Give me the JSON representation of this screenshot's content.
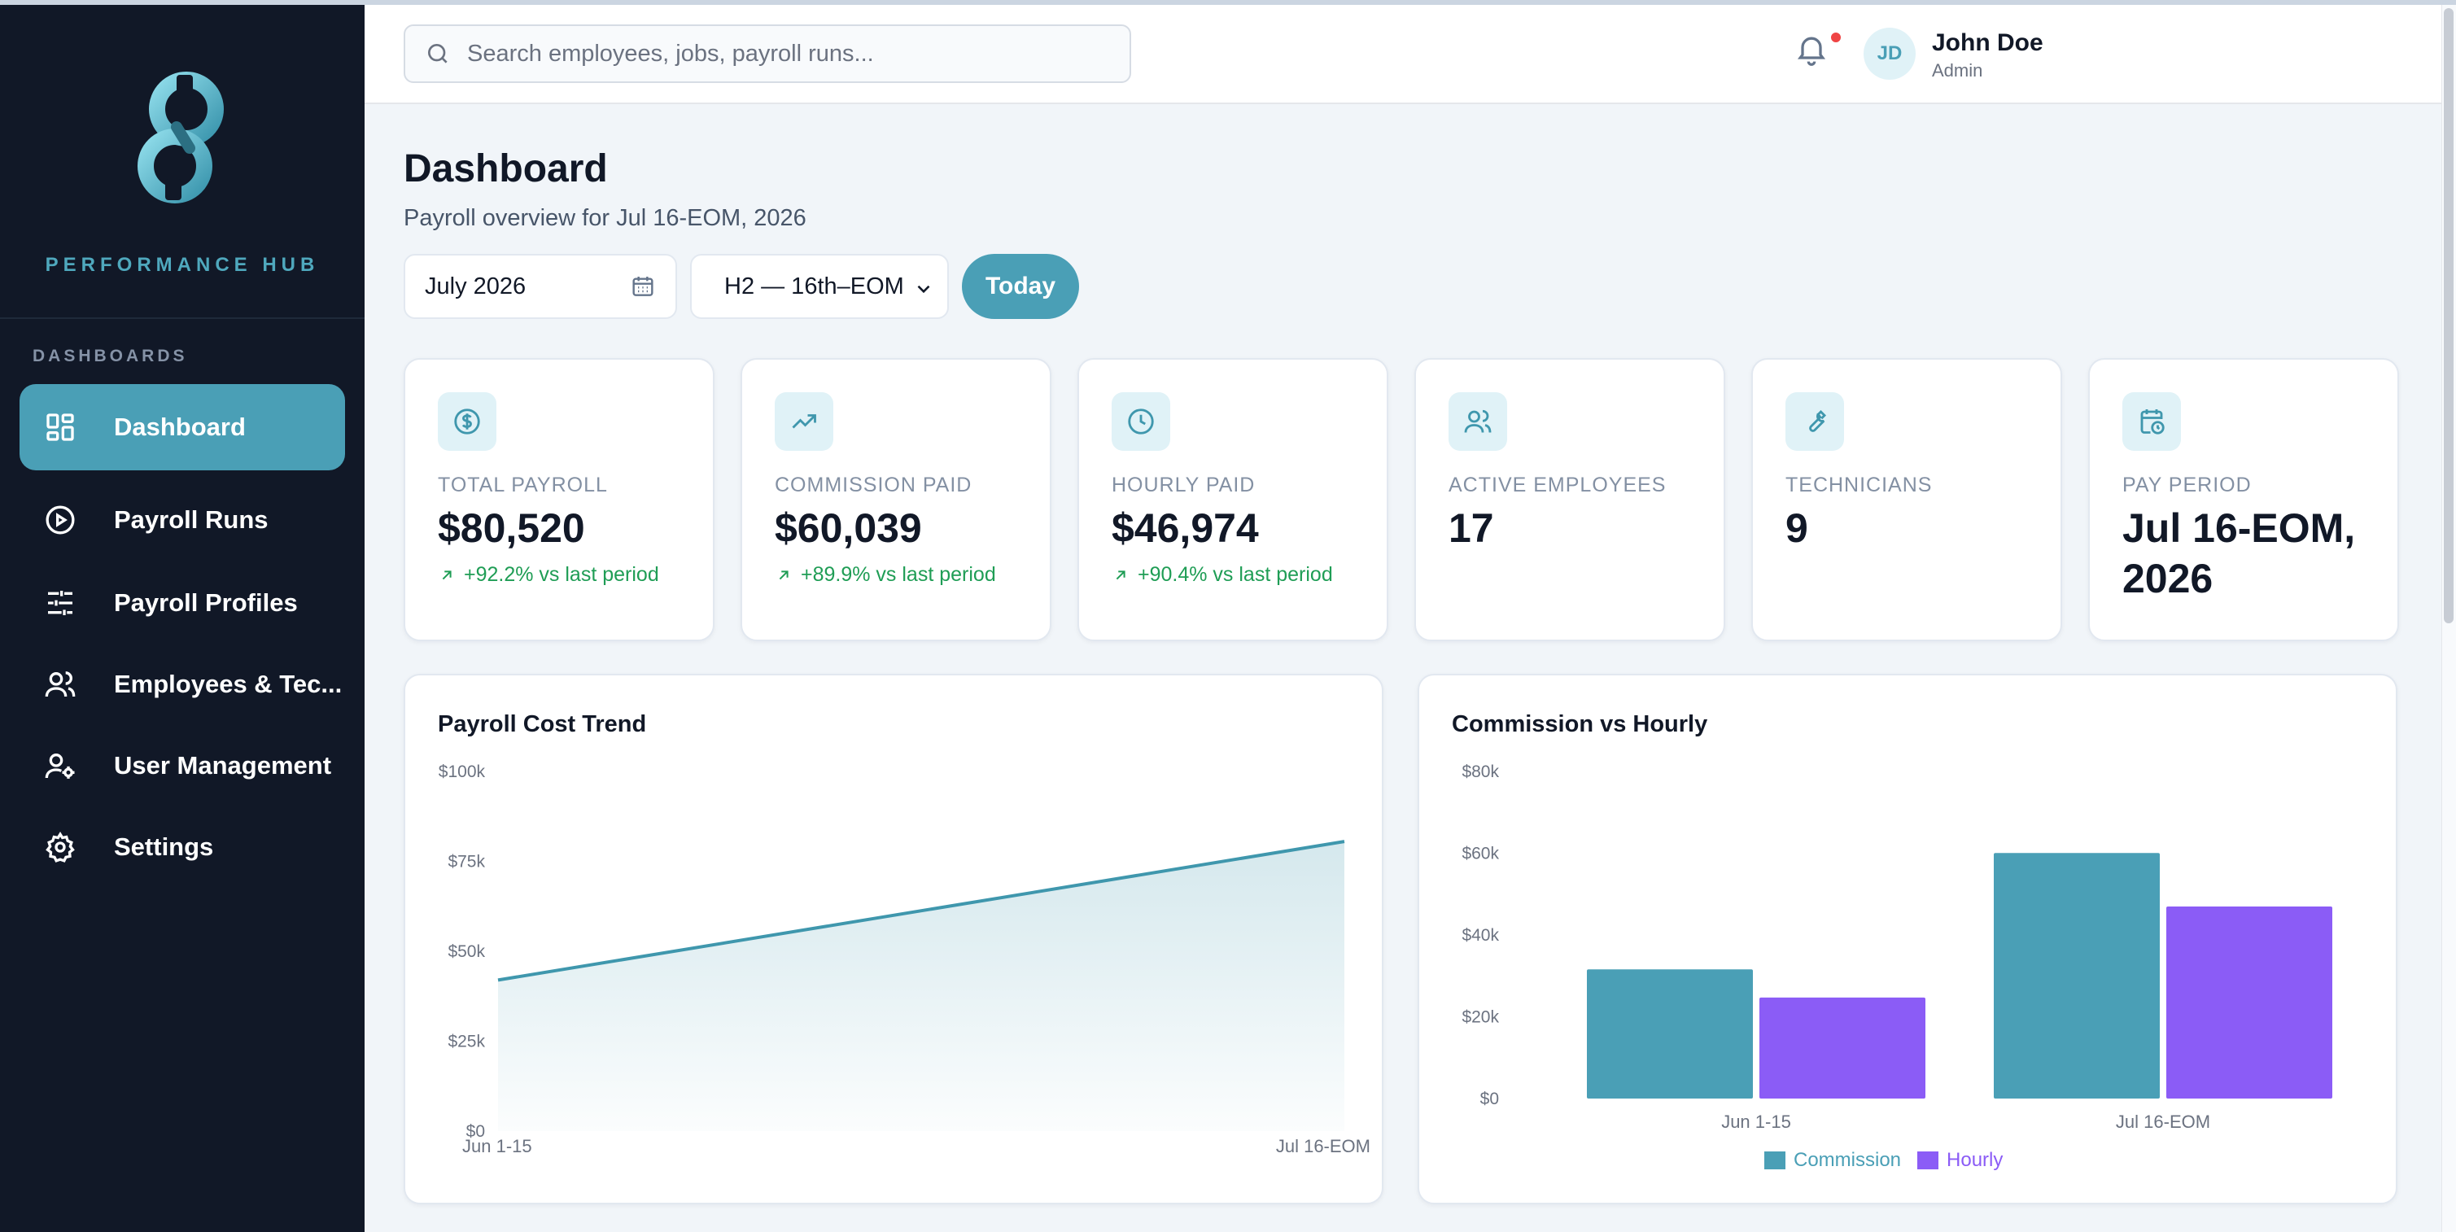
{
  "app": {
    "brand": "PERFORMANCE HUB",
    "accent_color": "#4a9fb6"
  },
  "sidebar": {
    "section": "DASHBOARDS",
    "items": [
      {
        "label": "Dashboard",
        "icon": "grid-icon",
        "active": true
      },
      {
        "label": "Payroll Runs",
        "icon": "play-circle-icon",
        "active": false
      },
      {
        "label": "Payroll Profiles",
        "icon": "sliders-icon",
        "active": false
      },
      {
        "label": "Employees & Tec...",
        "icon": "users-icon",
        "active": false
      },
      {
        "label": "User Management",
        "icon": "user-cog-icon",
        "active": false
      },
      {
        "label": "Settings",
        "icon": "gear-icon",
        "active": false
      }
    ]
  },
  "topbar": {
    "search_placeholder": "Search employees, jobs, payroll runs...",
    "user": {
      "initials": "JD",
      "name": "John Doe",
      "role": "Admin"
    },
    "notifications_unread": true
  },
  "page": {
    "title": "Dashboard",
    "subtitle": "Payroll overview for Jul 16-EOM, 2026",
    "month_value": "July 2026",
    "period_value": "H2 — 16th–EOM",
    "today_label": "Today"
  },
  "stats": [
    {
      "label": "TOTAL PAYROLL",
      "value": "$80,520",
      "delta": "+92.2% vs last period",
      "icon": "dollar-circle-icon"
    },
    {
      "label": "COMMISSION PAID",
      "value": "$60,039",
      "delta": "+89.9% vs last period",
      "icon": "trending-up-icon"
    },
    {
      "label": "HOURLY PAID",
      "value": "$46,974",
      "delta": "+90.4% vs last period",
      "icon": "clock-icon"
    },
    {
      "label": "ACTIVE EMPLOYEES",
      "value": "17",
      "delta": "",
      "icon": "users-icon"
    },
    {
      "label": "TECHNICIANS",
      "value": "9",
      "delta": "",
      "icon": "wrench-icon"
    },
    {
      "label": "PAY PERIOD",
      "value": "Jul 16-EOM, 2026",
      "delta": "",
      "icon": "calendar-clock-icon"
    }
  ],
  "chart_data": [
    {
      "type": "area",
      "title": "Payroll Cost Trend",
      "categories": [
        "Jun 1-15",
        "Jul 16-EOM"
      ],
      "values": [
        42000,
        80520
      ],
      "ylim": [
        0,
        100000
      ],
      "yticks": [
        "$0",
        "$25k",
        "$50k",
        "$75k",
        "$100k"
      ],
      "color": "#3f97ad",
      "grid": false
    },
    {
      "type": "bar",
      "title": "Commission vs Hourly",
      "categories": [
        "Jun 1-15",
        "Jul 16-EOM"
      ],
      "series": [
        {
          "name": "Commission",
          "values": [
            31600,
            60039
          ],
          "color": "#4a9fb6"
        },
        {
          "name": "Hourly",
          "values": [
            24700,
            46974
          ],
          "color": "#8b5cf6"
        }
      ],
      "ylim": [
        0,
        80000
      ],
      "yticks": [
        "$0",
        "$20k",
        "$40k",
        "$60k",
        "$80k"
      ],
      "legend": "bottom-center",
      "grid": false
    }
  ]
}
